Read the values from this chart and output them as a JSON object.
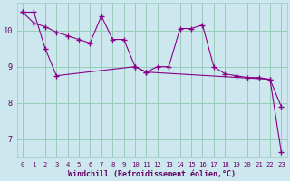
{
  "title": "",
  "xlabel": "Windchill (Refroidissement éolien,°C)",
  "ylabel": "",
  "background_color": "#cce8ee",
  "line_color": "#880088",
  "x_ticks": [
    0,
    1,
    2,
    3,
    4,
    5,
    6,
    7,
    8,
    9,
    10,
    11,
    12,
    13,
    14,
    15,
    16,
    17,
    18,
    19,
    20,
    21,
    22,
    23
  ],
  "y_ticks": [
    7,
    8,
    9,
    10
  ],
  "ylim": [
    6.5,
    10.75
  ],
  "xlim": [
    -0.5,
    23.5
  ],
  "line1_x": [
    0,
    1,
    2,
    3,
    4,
    5,
    6,
    7,
    8,
    9,
    10,
    11,
    12,
    13,
    14,
    15,
    16,
    17,
    18,
    19,
    20,
    21,
    22,
    23
  ],
  "line1_y": [
    10.5,
    10.2,
    10.1,
    9.95,
    9.85,
    9.75,
    9.65,
    10.4,
    9.75,
    9.75,
    9.0,
    8.85,
    9.0,
    9.0,
    10.05,
    10.05,
    10.15,
    9.0,
    8.8,
    8.75,
    8.7,
    8.7,
    8.65,
    7.9
  ],
  "line2_x": [
    0,
    1,
    2,
    3,
    10,
    11,
    22,
    23
  ],
  "line2_y": [
    10.5,
    10.5,
    9.5,
    8.75,
    9.0,
    8.85,
    8.65,
    6.65
  ],
  "grid_color": "#99ccbb",
  "grid_lw": 0.7,
  "font_color": "#660066",
  "marker": "+",
  "markersize": 4.0,
  "linewidth": 0.8,
  "tick_fontsize": 5.2,
  "xlabel_fontsize": 6.0
}
